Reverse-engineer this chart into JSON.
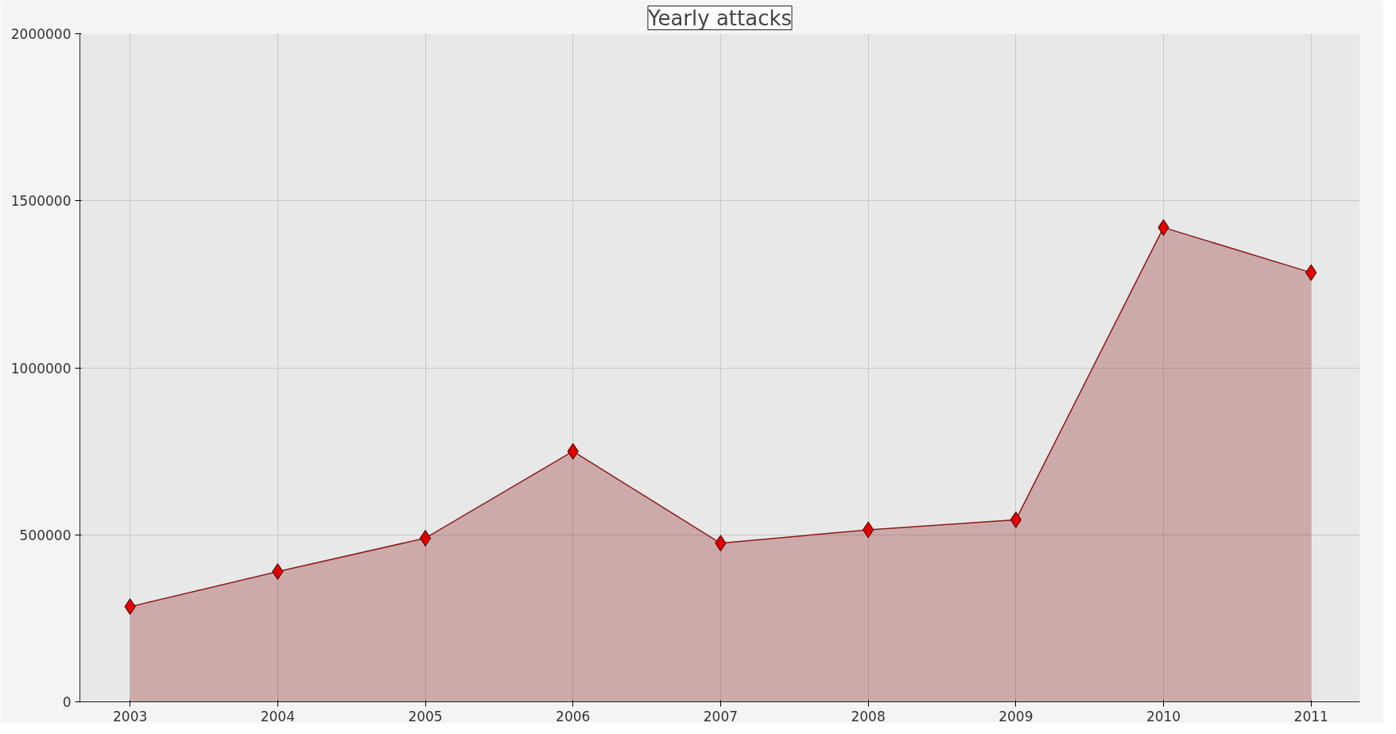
{
  "chart_data": {
    "type": "area",
    "title": "Yearly attacks",
    "x": [
      2003,
      2004,
      2005,
      2006,
      2007,
      2008,
      2009,
      2010,
      2011
    ],
    "series": [
      {
        "color": "#8b1a1a",
        "values": [
          285000,
          390000,
          490000,
          750000,
          475000,
          515000,
          545000,
          1420000,
          1285000
        ]
      }
    ],
    "xlim": [
      2002.66,
      2011.33
    ],
    "xticks": [
      2003,
      2004,
      2005,
      2006,
      2007,
      2008,
      2009,
      2010,
      2011
    ],
    "ylim": [
      0,
      2000000
    ],
    "yticks": [
      0,
      500000,
      1000000,
      1500000,
      2000000
    ],
    "grid": true,
    "marker": "diamond",
    "line_style": "solid"
  }
}
